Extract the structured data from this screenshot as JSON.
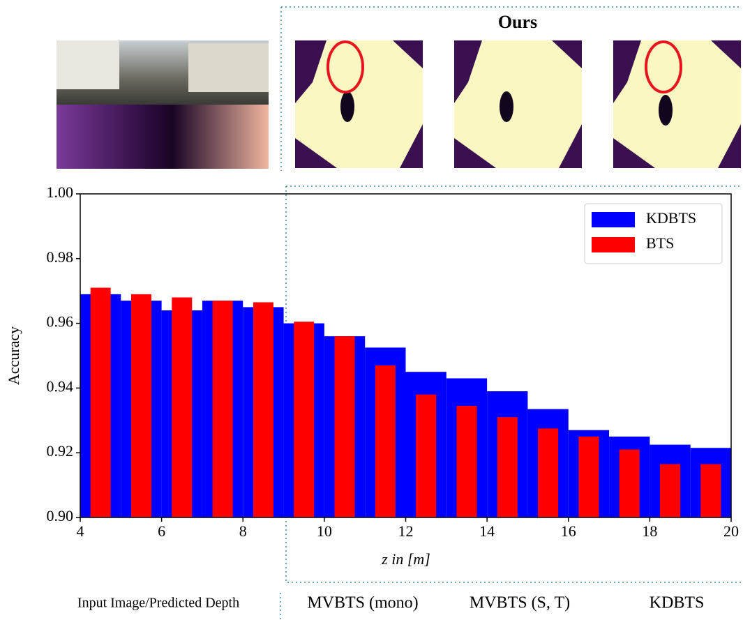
{
  "header": {
    "ours": "Ours"
  },
  "captions": [
    "Input Image/Predicted Depth",
    "MVBTS (mono)",
    "MVBTS (S, T)",
    "KDBTS"
  ],
  "chart_data": {
    "type": "bar",
    "y_label": "Accuracy",
    "x_label": "z in [m]",
    "xlim": [
      4,
      20
    ],
    "xticks": [
      4,
      6,
      8,
      10,
      12,
      14,
      16,
      18,
      20
    ],
    "ylim": [
      0.9,
      1.0
    ],
    "yticks": [
      {
        "value": 0.9,
        "label": "0.90"
      },
      0.92,
      0.94,
      0.96,
      0.98,
      {
        "value": 1.0,
        "label": "1.00"
      }
    ],
    "legend": "upper right",
    "series": [
      {
        "name": "KDBTS",
        "color": "#0000ff",
        "bins": [
          4,
          4.5,
          5,
          5.5,
          6,
          6.5,
          7,
          7.5,
          8,
          8.5,
          9,
          10,
          11,
          12,
          13,
          14,
          15,
          16,
          17,
          18,
          19,
          20
        ],
        "values": [
          0.969,
          0.969,
          0.967,
          0.967,
          0.964,
          0.964,
          0.967,
          0.967,
          0.965,
          0.965,
          0.96,
          0.956,
          0.9525,
          0.945,
          0.943,
          0.939,
          0.9335,
          0.927,
          0.925,
          0.9225,
          0.9215
        ]
      },
      {
        "name": "BTS",
        "color": "#ff0000",
        "x": [
          4.5,
          5.5,
          6.5,
          7.5,
          8.5,
          9.5,
          10.5,
          11.5,
          12.5,
          13.5,
          14.5,
          15.5,
          16.5,
          17.5,
          18.5,
          19.5
        ],
        "values": [
          0.971,
          0.969,
          0.968,
          0.967,
          0.9665,
          0.9605,
          0.956,
          0.947,
          0.938,
          0.9345,
          0.931,
          0.9275,
          0.925,
          0.921,
          0.9165,
          0.9165
        ]
      }
    ]
  }
}
